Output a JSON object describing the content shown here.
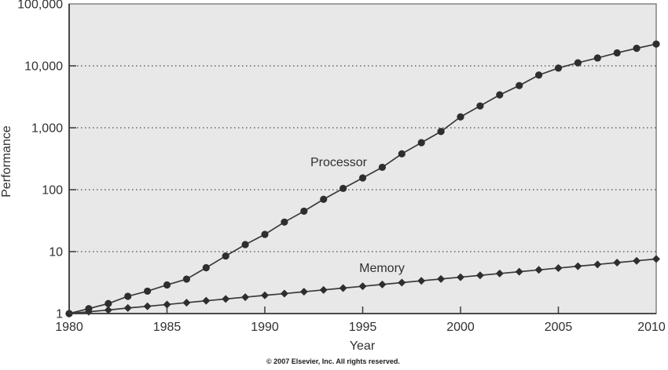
{
  "figure": {
    "kind": "line-chart-figure"
  },
  "footer": {
    "copyright": "© 2007 Elsevier, Inc. All rights reserved."
  },
  "chart_data": {
    "type": "line",
    "title": "",
    "xlabel": "Year",
    "ylabel": "Performance",
    "x_range": [
      1980,
      2010
    ],
    "y_range": [
      1,
      100000
    ],
    "y_scale": "log",
    "grid": "horizontal-dotted",
    "legend_position": "inline-annotations",
    "plot_bg_color": "#e8e8e8",
    "line_color": "#3a3a3a",
    "marker_color": "#2e2e2e",
    "xticks": [
      1980,
      1985,
      1990,
      1995,
      2000,
      2005,
      2010
    ],
    "xtick_labels": [
      "1980",
      "1985",
      "1990",
      "1995",
      "2000",
      "2005",
      "2010"
    ],
    "yticks": [
      1,
      10,
      100,
      1000,
      10000,
      100000
    ],
    "ytick_labels": [
      "1",
      "10",
      "100",
      "1,000",
      "10,000",
      "100,000"
    ],
    "x": [
      1980,
      1981,
      1982,
      1983,
      1984,
      1985,
      1986,
      1987,
      1988,
      1989,
      1990,
      1991,
      1992,
      1993,
      1994,
      1995,
      1996,
      1997,
      1998,
      1999,
      2000,
      2001,
      2002,
      2003,
      2004,
      2005,
      2006,
      2007,
      2008,
      2009,
      2010
    ],
    "series": [
      {
        "name": "Processor",
        "marker": "circle",
        "values": [
          1.0,
          1.2,
          1.45,
          1.9,
          2.3,
          2.9,
          3.6,
          5.5,
          8.5,
          13,
          19,
          30,
          45,
          70,
          105,
          155,
          230,
          380,
          575,
          870,
          1500,
          2250,
          3400,
          4800,
          7100,
          9200,
          11200,
          13400,
          16200,
          19200,
          22500
        ]
      },
      {
        "name": "Memory",
        "marker": "diamond",
        "values": [
          1.0,
          1.07,
          1.14,
          1.23,
          1.31,
          1.4,
          1.5,
          1.61,
          1.72,
          1.84,
          1.97,
          2.1,
          2.25,
          2.41,
          2.58,
          2.76,
          2.95,
          3.16,
          3.38,
          3.62,
          3.87,
          4.14,
          4.43,
          4.74,
          5.07,
          5.43,
          5.81,
          6.21,
          6.65,
          7.11,
          7.61
        ]
      }
    ]
  }
}
